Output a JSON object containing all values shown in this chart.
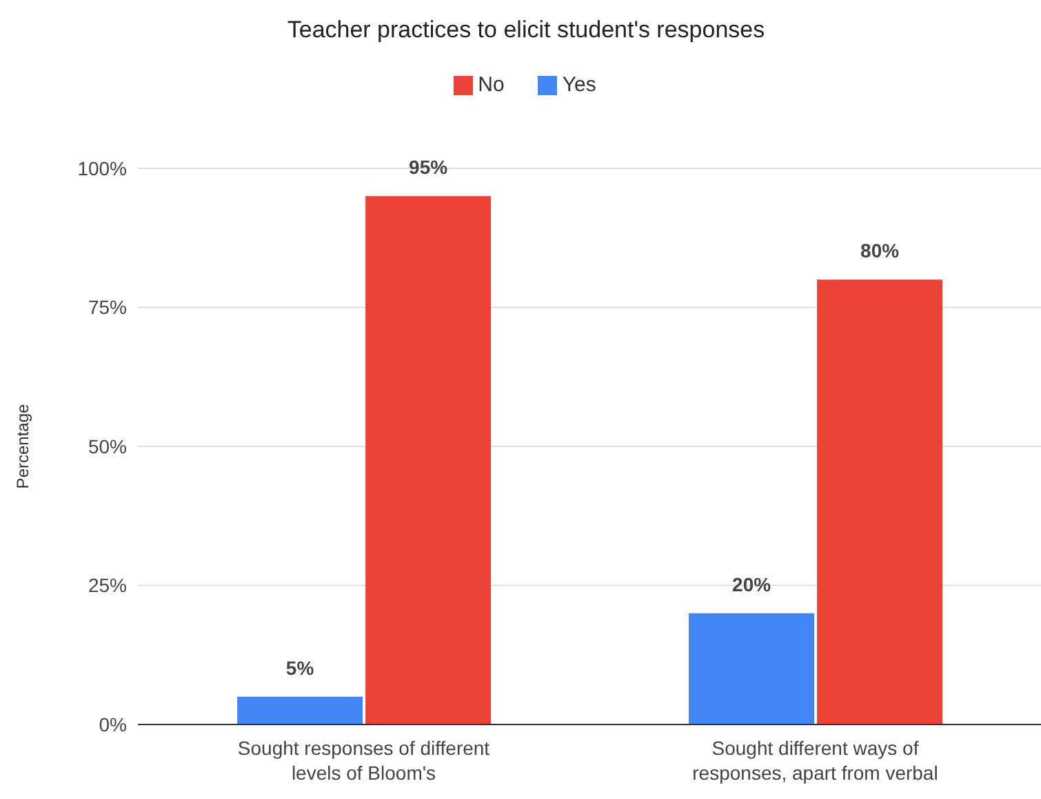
{
  "chart_data": {
    "type": "bar",
    "title": "Teacher practices to elicit student's responses",
    "ylabel": "Percentage",
    "categories": [
      "Sought responses of different levels of Bloom's",
      "Sought different ways of responses, apart from verbal"
    ],
    "series": [
      {
        "name": "Yes",
        "color": "#4285f4",
        "values": [
          5,
          20
        ],
        "value_labels": [
          "5%",
          "20%"
        ]
      },
      {
        "name": "No",
        "color": "#ea4335",
        "values": [
          95,
          80
        ],
        "value_labels": [
          "95%",
          "80%"
        ]
      }
    ],
    "ylim": [
      0,
      100
    ],
    "yticks": [
      {
        "value": 0,
        "label": "0%"
      },
      {
        "value": 25,
        "label": "25%"
      },
      {
        "value": 50,
        "label": "50%"
      },
      {
        "value": 75,
        "label": "75%"
      },
      {
        "value": 100,
        "label": "100%"
      }
    ],
    "grid": "y",
    "legend": "top"
  }
}
